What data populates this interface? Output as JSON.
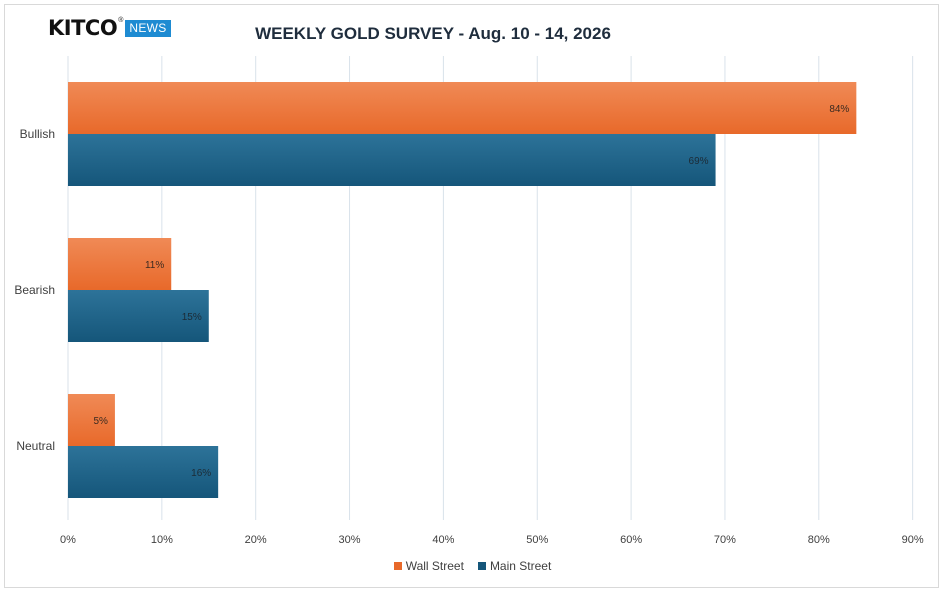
{
  "logo": {
    "brand": "KITCO",
    "reg": "®",
    "tag": "NEWS"
  },
  "chart_data": {
    "type": "bar",
    "orientation": "horizontal",
    "title": "WEEKLY GOLD SURVEY - Aug. 10 - 14, 2026",
    "categories": [
      "Bullish",
      "Bearish",
      "Neutral"
    ],
    "series": [
      {
        "name": "Wall Street",
        "values": [
          84,
          11,
          5
        ],
        "labels": [
          "84%",
          "11%",
          "5%"
        ],
        "color": "#e8692a",
        "color_light": "#f08a56"
      },
      {
        "name": "Main Street",
        "values": [
          69,
          15,
          16
        ],
        "labels": [
          "69%",
          "15%",
          "16%"
        ],
        "color": "#15567a",
        "color_light": "#2d7399"
      }
    ],
    "xlim": [
      0,
      90
    ],
    "xticks": [
      "0%",
      "10%",
      "20%",
      "30%",
      "40%",
      "50%",
      "60%",
      "70%",
      "80%",
      "90%"
    ],
    "grid": true,
    "legend": "bottom"
  }
}
